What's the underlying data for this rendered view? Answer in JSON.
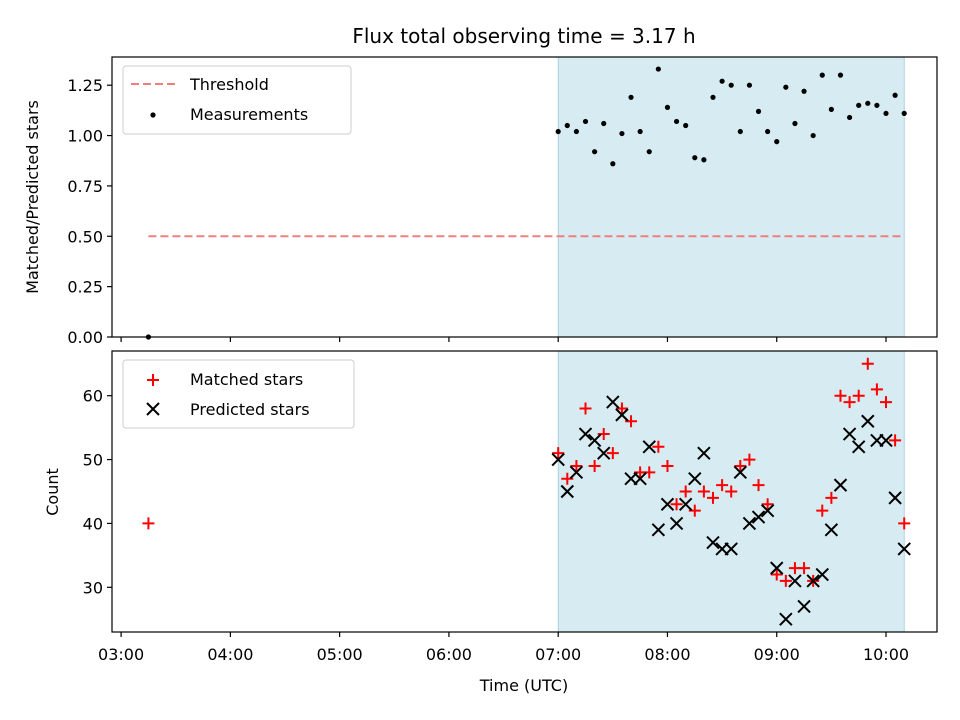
{
  "chart_data": [
    {
      "type": "scatter",
      "title": "Flux total observing time = 3.17 h",
      "ylabel": "Matched/Predicted stars",
      "xlabel": "",
      "x_unit": "time-of-day",
      "xlim": [
        "02:55",
        "10:28"
      ],
      "ylim": [
        0,
        1.39
      ],
      "yticks": [
        "0.00",
        "0.25",
        "0.50",
        "0.75",
        "1.00",
        "1.25"
      ],
      "grid": false,
      "legend_position": "top-left",
      "shaded_span": {
        "start": "07:00",
        "end": "10:10",
        "color": "#add8e6"
      },
      "series": [
        {
          "name": "Threshold",
          "kind": "line",
          "style": "dashed",
          "color": "#f08080",
          "x": [
            "03:15",
            "10:10"
          ],
          "y": [
            0.5,
            0.5
          ]
        },
        {
          "name": "Measurements",
          "kind": "scatter",
          "marker": "dot",
          "color": "#000000",
          "x": [
            "03:15",
            "07:00",
            "07:05",
            "07:10",
            "07:15",
            "07:20",
            "07:25",
            "07:30",
            "07:35",
            "07:40",
            "07:45",
            "07:50",
            "07:55",
            "08:00",
            "08:05",
            "08:10",
            "08:15",
            "08:20",
            "08:25",
            "08:30",
            "08:35",
            "08:40",
            "08:45",
            "08:50",
            "08:55",
            "09:00",
            "09:05",
            "09:10",
            "09:15",
            "09:20",
            "09:25",
            "09:30",
            "09:35",
            "09:40",
            "09:45",
            "09:50",
            "09:55",
            "10:00",
            "10:05",
            "10:10"
          ],
          "y": [
            0.0,
            1.02,
            1.05,
            1.02,
            1.07,
            0.92,
            1.06,
            0.86,
            1.01,
            1.19,
            1.02,
            0.92,
            1.33,
            1.14,
            1.07,
            1.05,
            0.89,
            0.88,
            1.19,
            1.27,
            1.25,
            1.02,
            1.25,
            1.12,
            1.02,
            0.97,
            1.24,
            1.06,
            1.22,
            1.0,
            1.3,
            1.13,
            1.3,
            1.09,
            1.15,
            1.16,
            1.15,
            1.11,
            1.2,
            1.11
          ]
        }
      ]
    },
    {
      "type": "scatter",
      "title": "",
      "ylabel": "Count",
      "xlabel": "Time (UTC)",
      "x_unit": "time-of-day",
      "xlim": [
        "02:55",
        "10:28"
      ],
      "ylim": [
        23,
        67
      ],
      "xticks": [
        "03:00",
        "04:00",
        "05:00",
        "06:00",
        "07:00",
        "08:00",
        "09:00",
        "10:00"
      ],
      "yticks": [
        "30",
        "40",
        "50",
        "60"
      ],
      "grid": false,
      "legend_position": "top-left",
      "shaded_span": {
        "start": "07:00",
        "end": "10:10",
        "color": "#add8e6"
      },
      "series": [
        {
          "name": "Matched stars",
          "kind": "scatter",
          "marker": "plus",
          "color": "#ff0000",
          "x": [
            "03:15",
            "07:00",
            "07:05",
            "07:10",
            "07:15",
            "07:20",
            "07:25",
            "07:30",
            "07:35",
            "07:40",
            "07:45",
            "07:50",
            "07:55",
            "08:00",
            "08:05",
            "08:10",
            "08:15",
            "08:20",
            "08:25",
            "08:30",
            "08:35",
            "08:40",
            "08:45",
            "08:50",
            "08:55",
            "09:00",
            "09:05",
            "09:10",
            "09:15",
            "09:20",
            "09:25",
            "09:30",
            "09:35",
            "09:40",
            "09:45",
            "09:50",
            "09:55",
            "10:00",
            "10:05",
            "10:10"
          ],
          "y": [
            40,
            51,
            47,
            49,
            58,
            49,
            54,
            51,
            58,
            56,
            48,
            48,
            52,
            49,
            43,
            45,
            42,
            45,
            44,
            46,
            45,
            49,
            50,
            46,
            43,
            32,
            31,
            33,
            33,
            31,
            42,
            44,
            60,
            59,
            60,
            65,
            61,
            59,
            53,
            40
          ]
        },
        {
          "name": "Predicted stars",
          "kind": "scatter",
          "marker": "x",
          "color": "#000000",
          "x": [
            "07:00",
            "07:05",
            "07:10",
            "07:15",
            "07:20",
            "07:25",
            "07:30",
            "07:35",
            "07:40",
            "07:45",
            "07:50",
            "07:55",
            "08:00",
            "08:05",
            "08:10",
            "08:15",
            "08:20",
            "08:25",
            "08:30",
            "08:35",
            "08:40",
            "08:45",
            "08:50",
            "08:55",
            "09:00",
            "09:05",
            "09:10",
            "09:15",
            "09:20",
            "09:25",
            "09:30",
            "09:35",
            "09:40",
            "09:45",
            "09:50",
            "09:55",
            "10:00",
            "10:05",
            "10:10"
          ],
          "y": [
            50,
            45,
            48,
            54,
            53,
            51,
            59,
            57,
            47,
            47,
            52,
            39,
            43,
            40,
            43,
            47,
            51,
            37,
            36,
            36,
            48,
            40,
            41,
            42,
            33,
            25,
            31,
            27,
            31,
            32,
            39,
            46,
            54,
            52,
            56,
            53,
            53,
            44,
            36
          ]
        }
      ]
    }
  ]
}
